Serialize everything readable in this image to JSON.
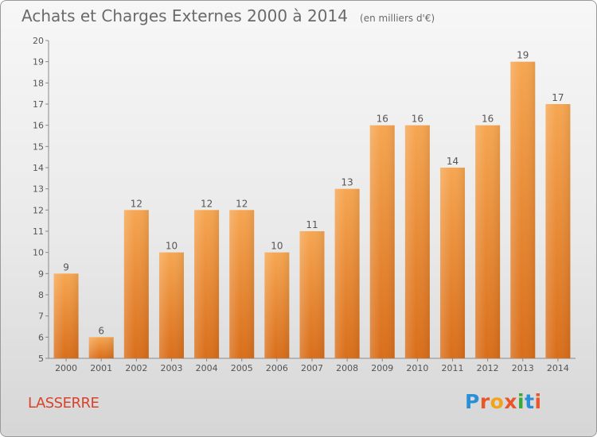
{
  "header": {
    "title": "Achats et Charges Externes 2000 à 2014",
    "unit": "(en milliers d'€)"
  },
  "footer": {
    "commune": "LASSERRE",
    "logo_letters": [
      "P",
      "r",
      "o",
      "x",
      "i",
      "t",
      "i"
    ],
    "logo_colors": [
      "#2a8fd6",
      "#e8562a",
      "#f2a21b",
      "#e8562a",
      "#3aa83a",
      "#2a8fd6",
      "#e8562a"
    ]
  },
  "chart_data": {
    "type": "bar",
    "title": "Achats et Charges Externes 2000 à 2014",
    "subtitle": "(en milliers d'€)",
    "xlabel": "",
    "ylabel": "",
    "categories": [
      "2000",
      "2001",
      "2002",
      "2003",
      "2004",
      "2005",
      "2006",
      "2007",
      "2008",
      "2009",
      "2010",
      "2011",
      "2012",
      "2013",
      "2014"
    ],
    "values": [
      9,
      6,
      12,
      10,
      12,
      12,
      10,
      11,
      13,
      16,
      16,
      14,
      16,
      19,
      17
    ],
    "ylim": [
      5,
      20
    ],
    "yticks": [
      5,
      6,
      7,
      8,
      9,
      10,
      11,
      12,
      13,
      14,
      15,
      16,
      17,
      18,
      19,
      20
    ],
    "grid": false,
    "bar_color": "#e8872e",
    "label_color": "#555555",
    "axis_color": "#8a8a8a"
  }
}
